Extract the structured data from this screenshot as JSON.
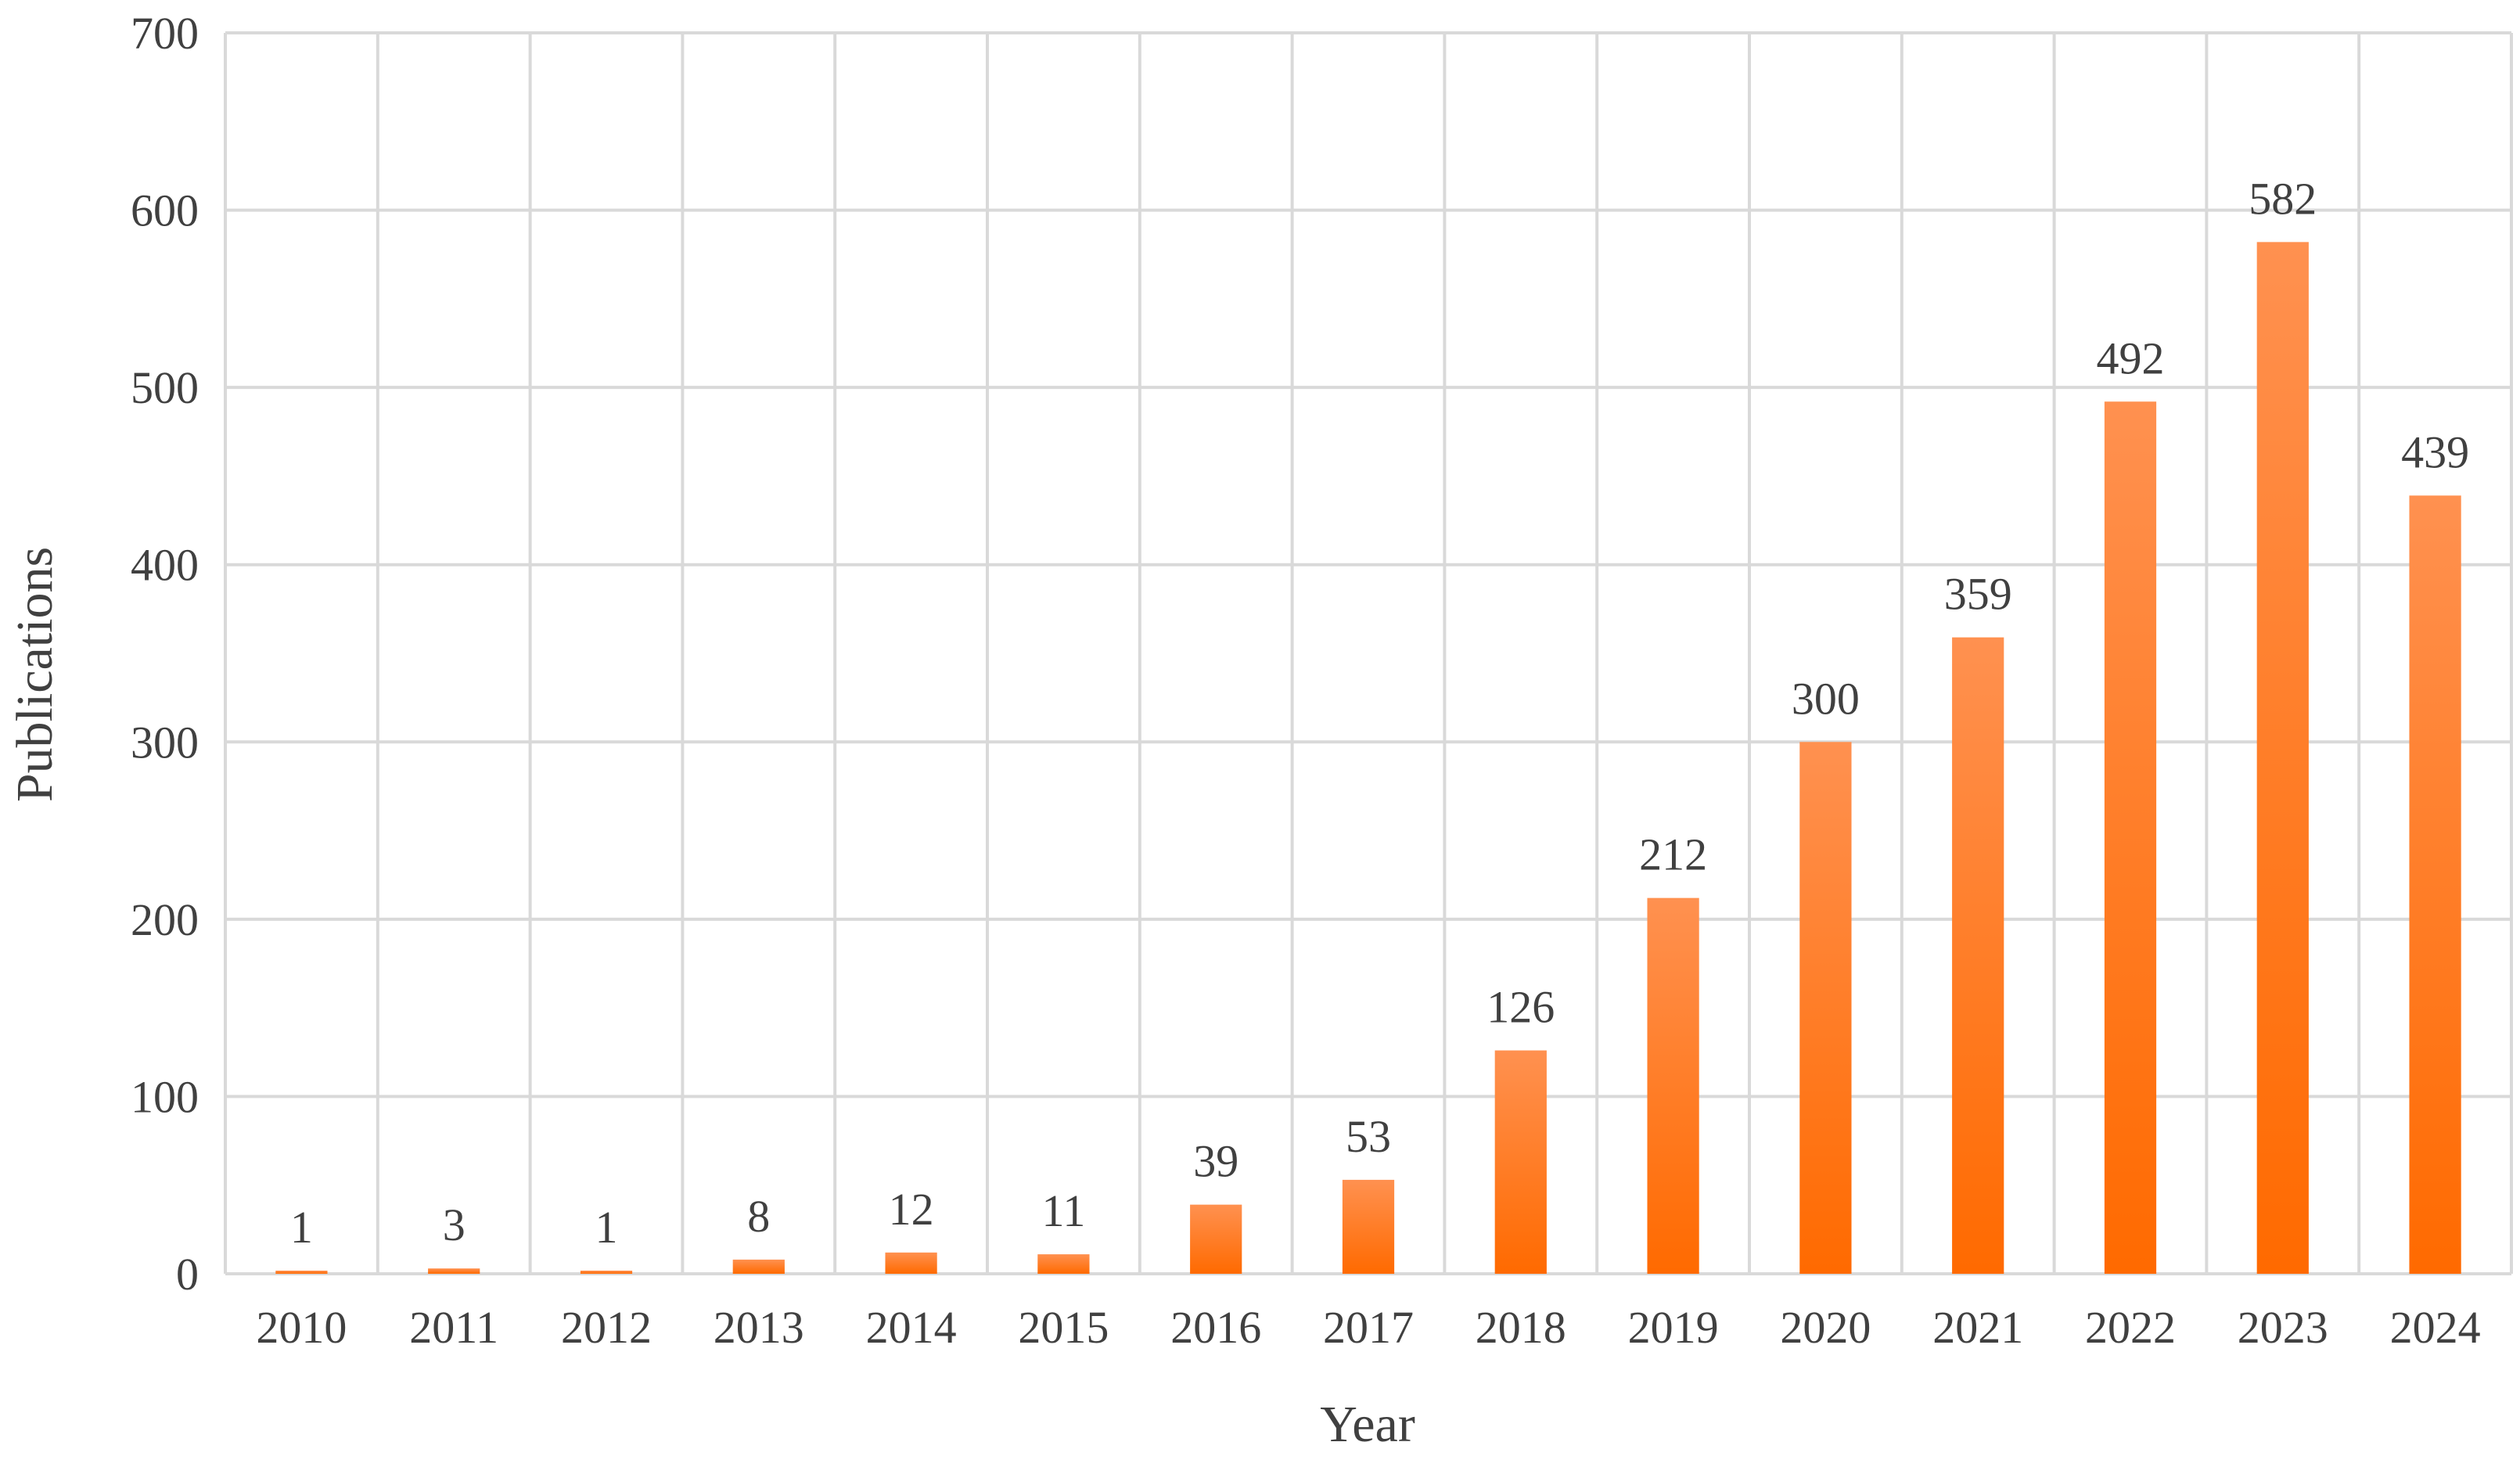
{
  "chart_data": {
    "type": "bar",
    "title": "",
    "xlabel": "Year",
    "ylabel": "Publications",
    "categories": [
      "2010",
      "2011",
      "2012",
      "2013",
      "2014",
      "2015",
      "2016",
      "2017",
      "2018",
      "2019",
      "2020",
      "2021",
      "2022",
      "2023",
      "2024"
    ],
    "values": [
      1,
      3,
      1,
      8,
      12,
      11,
      39,
      53,
      126,
      212,
      300,
      359,
      492,
      582,
      439
    ],
    "ylim": [
      0,
      700
    ],
    "yticks": [
      0,
      100,
      200,
      300,
      400,
      500,
      600,
      700
    ],
    "grid": true,
    "data_labels": true,
    "legend": "none",
    "colors": {
      "bar_top": "#ff9150",
      "bar_bottom": "#ff6a00",
      "grid": "#d9d9d9",
      "text": "#404040"
    }
  }
}
